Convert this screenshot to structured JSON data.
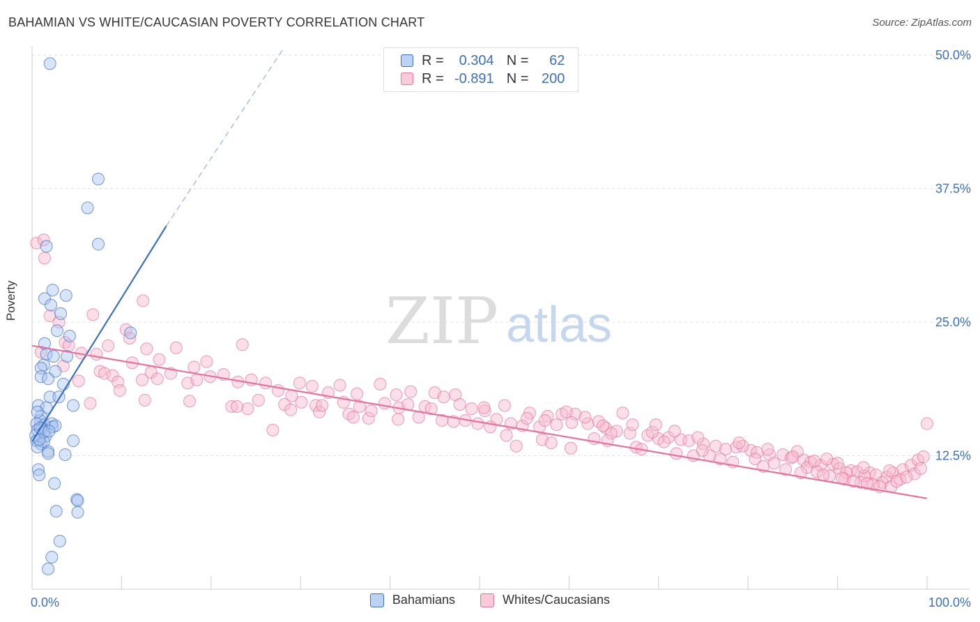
{
  "title": "BAHAMIAN VS WHITE/CAUCASIAN POVERTY CORRELATION CHART",
  "source": "Source: ZipAtlas.com",
  "watermark": {
    "zip": "ZIP",
    "atlas": "atlas"
  },
  "colors": {
    "blue": "#3b6fc4",
    "blue_fill": "#a9c4ee",
    "pink": "#e8709a",
    "pink_fill": "#f6b8cb"
  },
  "legend_top": {
    "rows": [
      {
        "r_label": "R =",
        "r_value": "0.304",
        "n_label": "N =",
        "n_value": "62"
      },
      {
        "r_label": "R =",
        "r_value": "-0.891",
        "n_label": "N =",
        "n_value": "200"
      }
    ]
  },
  "chart_data": {
    "type": "scatter",
    "title": "BAHAMIAN VS WHITE/CAUCASIAN POVERTY CORRELATION CHART",
    "xlabel": "",
    "ylabel": "Poverty",
    "xlim": [
      0,
      100
    ],
    "ylim": [
      0,
      52
    ],
    "x_tick_labels": [
      "0.0%",
      "100.0%"
    ],
    "y_ticks": [
      12.5,
      25.0,
      37.5,
      50.0
    ],
    "y_tick_labels": [
      "12.5%",
      "25.0%",
      "37.5%",
      "50.0%"
    ],
    "grid": true,
    "legend_position": "bottom-center",
    "series": [
      {
        "name": "Bahamians",
        "color": "#3b6fc4",
        "regression": {
          "x": [
            0,
            15
          ],
          "y": [
            13.8,
            34.0
          ],
          "dashed_to": [
            28,
            50.5
          ]
        },
        "points": [
          [
            2.0,
            49.2
          ],
          [
            7.4,
            38.4
          ],
          [
            6.2,
            35.7
          ],
          [
            7.4,
            32.3
          ],
          [
            1.6,
            32.1
          ],
          [
            2.3,
            28.0
          ],
          [
            3.8,
            27.5
          ],
          [
            1.4,
            27.2
          ],
          [
            2.1,
            26.6
          ],
          [
            3.2,
            25.8
          ],
          [
            2.8,
            24.2
          ],
          [
            11.0,
            24.0
          ],
          [
            4.2,
            23.7
          ],
          [
            1.4,
            23.0
          ],
          [
            1.6,
            22.0
          ],
          [
            2.4,
            21.8
          ],
          [
            3.9,
            21.8
          ],
          [
            1.3,
            21.0
          ],
          [
            1.0,
            20.7
          ],
          [
            2.6,
            20.4
          ],
          [
            1.0,
            19.9
          ],
          [
            1.8,
            19.7
          ],
          [
            3.5,
            19.2
          ],
          [
            2.0,
            18.0
          ],
          [
            3.0,
            18.0
          ],
          [
            0.7,
            17.2
          ],
          [
            1.6,
            17.0
          ],
          [
            4.6,
            17.2
          ],
          [
            1.0,
            16.2
          ],
          [
            0.9,
            15.8
          ],
          [
            0.5,
            15.5
          ],
          [
            1.4,
            15.4
          ],
          [
            2.2,
            15.5
          ],
          [
            2.3,
            15.2
          ],
          [
            1.1,
            15.0
          ],
          [
            0.6,
            14.9
          ],
          [
            0.4,
            14.4
          ],
          [
            1.5,
            14.3
          ],
          [
            0.5,
            13.9
          ],
          [
            1.0,
            13.6
          ],
          [
            1.3,
            13.8
          ],
          [
            4.6,
            13.9
          ],
          [
            0.6,
            13.3
          ],
          [
            1.8,
            12.9
          ],
          [
            1.8,
            12.7
          ],
          [
            3.7,
            12.6
          ],
          [
            0.7,
            11.2
          ],
          [
            0.8,
            10.7
          ],
          [
            2.5,
            9.9
          ],
          [
            5.0,
            8.4
          ],
          [
            5.1,
            8.3
          ],
          [
            2.7,
            7.3
          ],
          [
            5.1,
            7.2
          ],
          [
            3.1,
            4.5
          ],
          [
            2.2,
            3.0
          ],
          [
            1.8,
            1.9
          ],
          [
            0.9,
            15.1
          ],
          [
            1.3,
            14.7
          ],
          [
            0.6,
            16.6
          ],
          [
            2.6,
            15.3
          ],
          [
            1.9,
            14.8
          ],
          [
            0.8,
            14.0
          ]
        ]
      },
      {
        "name": "Whites/Caucasians",
        "color": "#e8709a",
        "regression": {
          "x": [
            0,
            100
          ],
          "y": [
            22.8,
            8.5
          ]
        },
        "points": [
          [
            0.5,
            32.4
          ],
          [
            1.3,
            32.7
          ],
          [
            1.4,
            31.0
          ],
          [
            12.4,
            27.0
          ],
          [
            2.0,
            25.6
          ],
          [
            6.8,
            25.7
          ],
          [
            3.0,
            25.0
          ],
          [
            10.5,
            24.3
          ],
          [
            10.9,
            23.5
          ],
          [
            3.7,
            23.1
          ],
          [
            4.1,
            22.8
          ],
          [
            8.5,
            22.8
          ],
          [
            23.5,
            22.9
          ],
          [
            12.8,
            22.5
          ],
          [
            16.1,
            22.6
          ],
          [
            5.5,
            22.1
          ],
          [
            7.2,
            22.0
          ],
          [
            14.2,
            21.5
          ],
          [
            11.2,
            21.2
          ],
          [
            19.5,
            21.3
          ],
          [
            3.5,
            20.9
          ],
          [
            18.1,
            20.8
          ],
          [
            7.6,
            20.4
          ],
          [
            8.1,
            20.2
          ],
          [
            9.0,
            20.0
          ],
          [
            13.3,
            20.3
          ],
          [
            15.5,
            20.2
          ],
          [
            21.4,
            20.1
          ],
          [
            12.3,
            19.6
          ],
          [
            14.0,
            19.7
          ],
          [
            17.4,
            19.3
          ],
          [
            18.4,
            19.6
          ],
          [
            23.0,
            19.4
          ],
          [
            24.5,
            19.6
          ],
          [
            5.2,
            19.5
          ],
          [
            9.6,
            19.4
          ],
          [
            26.1,
            19.3
          ],
          [
            29.9,
            19.3
          ],
          [
            31.3,
            19.0
          ],
          [
            34.4,
            19.1
          ],
          [
            38.9,
            19.2
          ],
          [
            27.5,
            18.6
          ],
          [
            29.0,
            18.1
          ],
          [
            33.1,
            18.4
          ],
          [
            36.3,
            18.3
          ],
          [
            40.7,
            18.2
          ],
          [
            42.3,
            18.5
          ],
          [
            45.0,
            18.4
          ],
          [
            46.0,
            18.0
          ],
          [
            47.3,
            18.2
          ],
          [
            25.3,
            17.7
          ],
          [
            28.2,
            17.3
          ],
          [
            30.1,
            17.5
          ],
          [
            31.7,
            17.2
          ],
          [
            34.8,
            17.5
          ],
          [
            36.6,
            17.1
          ],
          [
            39.4,
            17.4
          ],
          [
            41.0,
            17.0
          ],
          [
            43.9,
            17.1
          ],
          [
            47.8,
            17.3
          ],
          [
            49.1,
            16.9
          ],
          [
            50.6,
            16.7
          ],
          [
            52.8,
            17.2
          ],
          [
            55.6,
            16.5
          ],
          [
            57.6,
            16.2
          ],
          [
            59.2,
            16.4
          ],
          [
            60.7,
            16.4
          ],
          [
            6.5,
            17.4
          ],
          [
            12.6,
            17.7
          ],
          [
            17.6,
            17.6
          ],
          [
            22.3,
            17.1
          ],
          [
            24.1,
            16.9
          ],
          [
            28.9,
            16.8
          ],
          [
            32.1,
            16.6
          ],
          [
            35.4,
            16.4
          ],
          [
            37.6,
            16.0
          ],
          [
            40.9,
            15.9
          ],
          [
            43.2,
            16.1
          ],
          [
            45.8,
            15.8
          ],
          [
            47.1,
            15.7
          ],
          [
            49.8,
            15.5
          ],
          [
            51.9,
            15.9
          ],
          [
            53.5,
            15.5
          ],
          [
            54.8,
            15.3
          ],
          [
            56.7,
            15.2
          ],
          [
            58.6,
            15.4
          ],
          [
            60.3,
            15.6
          ],
          [
            62.1,
            15.5
          ],
          [
            64.1,
            15.1
          ],
          [
            65.3,
            14.8
          ],
          [
            66.8,
            14.6
          ],
          [
            67.1,
            15.4
          ],
          [
            68.8,
            14.4
          ],
          [
            70.0,
            14.1
          ],
          [
            71.1,
            14.2
          ],
          [
            72.5,
            14.0
          ],
          [
            73.4,
            13.9
          ],
          [
            75.0,
            13.6
          ],
          [
            76.4,
            13.4
          ],
          [
            77.5,
            13.1
          ],
          [
            78.7,
            13.3
          ],
          [
            80.3,
            13.0
          ],
          [
            81.0,
            12.8
          ],
          [
            82.4,
            12.6
          ],
          [
            83.9,
            12.6
          ],
          [
            84.8,
            12.3
          ],
          [
            86.2,
            12.1
          ],
          [
            87.0,
            11.9
          ],
          [
            88.1,
            11.6
          ],
          [
            89.5,
            11.7
          ],
          [
            90.2,
            11.3
          ],
          [
            91.5,
            11.1
          ],
          [
            92.2,
            11.0
          ],
          [
            93.6,
            10.9
          ],
          [
            94.3,
            10.7
          ],
          [
            95.5,
            10.5
          ],
          [
            96.2,
            10.9
          ],
          [
            97.3,
            11.2
          ],
          [
            98.2,
            11.6
          ],
          [
            99.0,
            12.1
          ],
          [
            99.6,
            12.4
          ],
          [
            100.0,
            15.5
          ],
          [
            1.0,
            22.2
          ],
          [
            50.5,
            17.0
          ],
          [
            61.8,
            16.1
          ],
          [
            63.3,
            15.7
          ],
          [
            69.3,
            14.7
          ],
          [
            74.4,
            14.2
          ],
          [
            79.4,
            13.4
          ],
          [
            85.5,
            12.9
          ],
          [
            88.8,
            12.2
          ],
          [
            91.0,
            10.9
          ],
          [
            93.0,
            10.6
          ],
          [
            95.0,
            10.0
          ],
          [
            97.0,
            10.3
          ],
          [
            98.6,
            10.8
          ],
          [
            66.0,
            16.5
          ],
          [
            59.7,
            16.6
          ],
          [
            55.3,
            16.0
          ],
          [
            62.8,
            14.1
          ],
          [
            64.7,
            14.6
          ],
          [
            70.6,
            13.8
          ],
          [
            75.7,
            12.5
          ],
          [
            80.8,
            12.2
          ],
          [
            82.9,
            11.8
          ],
          [
            86.6,
            11.4
          ],
          [
            87.7,
            11.0
          ],
          [
            89.1,
            10.6
          ],
          [
            90.8,
            10.3
          ],
          [
            92.6,
            10.0
          ],
          [
            94.0,
            9.8
          ],
          [
            96.0,
            9.6
          ],
          [
            53.0,
            14.4
          ],
          [
            57.0,
            14.0
          ],
          [
            58.0,
            13.7
          ],
          [
            67.5,
            13.3
          ],
          [
            68.1,
            13.1
          ],
          [
            72.0,
            12.7
          ],
          [
            73.9,
            12.5
          ],
          [
            76.9,
            12.2
          ],
          [
            78.3,
            11.9
          ],
          [
            81.7,
            11.5
          ],
          [
            84.2,
            11.2
          ],
          [
            85.9,
            10.9
          ],
          [
            88.4,
            10.7
          ],
          [
            90.5,
            10.4
          ],
          [
            91.8,
            10.1
          ],
          [
            93.3,
            9.9
          ],
          [
            94.7,
            9.6
          ],
          [
            96.6,
            10.1
          ],
          [
            9.8,
            18.6
          ],
          [
            19.9,
            19.9
          ],
          [
            22.9,
            17.1
          ],
          [
            26.9,
            14.9
          ],
          [
            32.4,
            17.2
          ],
          [
            35.9,
            16.1
          ],
          [
            37.9,
            16.7
          ],
          [
            42.0,
            17.3
          ],
          [
            44.6,
            16.9
          ],
          [
            48.4,
            15.8
          ],
          [
            51.2,
            15.2
          ],
          [
            57.3,
            15.8
          ],
          [
            63.8,
            15.3
          ],
          [
            69.7,
            15.4
          ],
          [
            71.8,
            14.8
          ],
          [
            74.9,
            13.0
          ],
          [
            79.0,
            13.7
          ],
          [
            82.2,
            13.1
          ],
          [
            85.0,
            12.4
          ],
          [
            87.4,
            12.0
          ],
          [
            90.0,
            11.8
          ],
          [
            92.9,
            11.4
          ],
          [
            95.8,
            11.1
          ],
          [
            97.7,
            10.5
          ],
          [
            99.3,
            11.3
          ],
          [
            64.3,
            13.9
          ],
          [
            60.2,
            13.2
          ],
          [
            54.1,
            13.4
          ]
        ]
      }
    ]
  }
}
